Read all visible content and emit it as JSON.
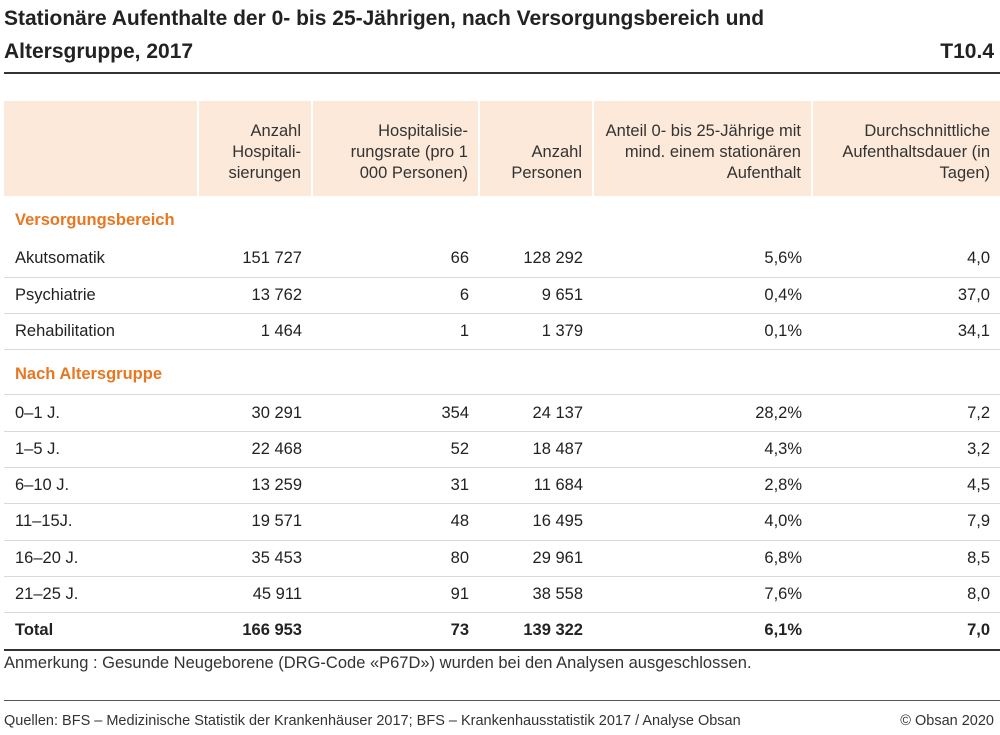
{
  "title": "Stationäre Aufenthalte der 0- bis 25-Jährigen, nach Versorgungsbereich und Altersgruppe, 2017",
  "table_code": "T10.4",
  "columns": [
    "",
    "Anzahl Hospitali­sierungen",
    "Hospitalisie­rungsrate (pro 1 000 Personen)",
    "Anzahl Personen",
    "Anteil 0- bis 25-Jährige mit mind. einem stationären Aufenthalt",
    "Durchschnittliche Aufenthaltsdauer (in Tagen)"
  ],
  "sections": [
    {
      "heading": "Versorgungsbereich",
      "rows": [
        {
          "label": "Akutsomatik",
          "values": [
            "151 727",
            "66",
            "128 292",
            "5,6%",
            "4,0"
          ]
        },
        {
          "label": "Psychiatrie",
          "values": [
            "13 762",
            "6",
            "9 651",
            "0,4%",
            "37,0"
          ]
        },
        {
          "label": "Rehabilitation",
          "values": [
            "1 464",
            "1",
            "1 379",
            "0,1%",
            "34,1"
          ]
        }
      ]
    },
    {
      "heading": "Nach Altersgruppe",
      "rows": [
        {
          "label": "0–1 J.",
          "values": [
            "30 291",
            "354",
            "24 137",
            "28,2%",
            "7,2"
          ]
        },
        {
          "label": "1–5 J.",
          "values": [
            "22 468",
            "52",
            "18 487",
            "4,3%",
            "3,2"
          ]
        },
        {
          "label": "6–10 J.",
          "values": [
            "13 259",
            "31",
            "11 684",
            "2,8%",
            "4,5"
          ]
        },
        {
          "label": "11–15J.",
          "values": [
            "19 571",
            "48",
            "16 495",
            "4,0%",
            "7,9"
          ]
        },
        {
          "label": "16–20 J.",
          "values": [
            "35 453",
            "80",
            "29 961",
            "6,8%",
            "8,5"
          ]
        },
        {
          "label": "21–25 J.",
          "values": [
            "45 911",
            "91",
            "38 558",
            "7,6%",
            "8,0"
          ]
        }
      ]
    }
  ],
  "total": {
    "label": "Total",
    "values": [
      "166 953",
      "73",
      "139 322",
      "6,1%",
      "7,0"
    ]
  },
  "note": "Anmerkung : Gesunde Neugeborene (DRG-Code «P67D») wurden bei den Analysen ausgeschlossen.",
  "sources": "Quellen: BFS – Medizinische Statistik der Krankenhäuser 2017; BFS – Krankenhausstatistik 2017 / Analyse Obsan",
  "copyright": "© Obsan 2020"
}
